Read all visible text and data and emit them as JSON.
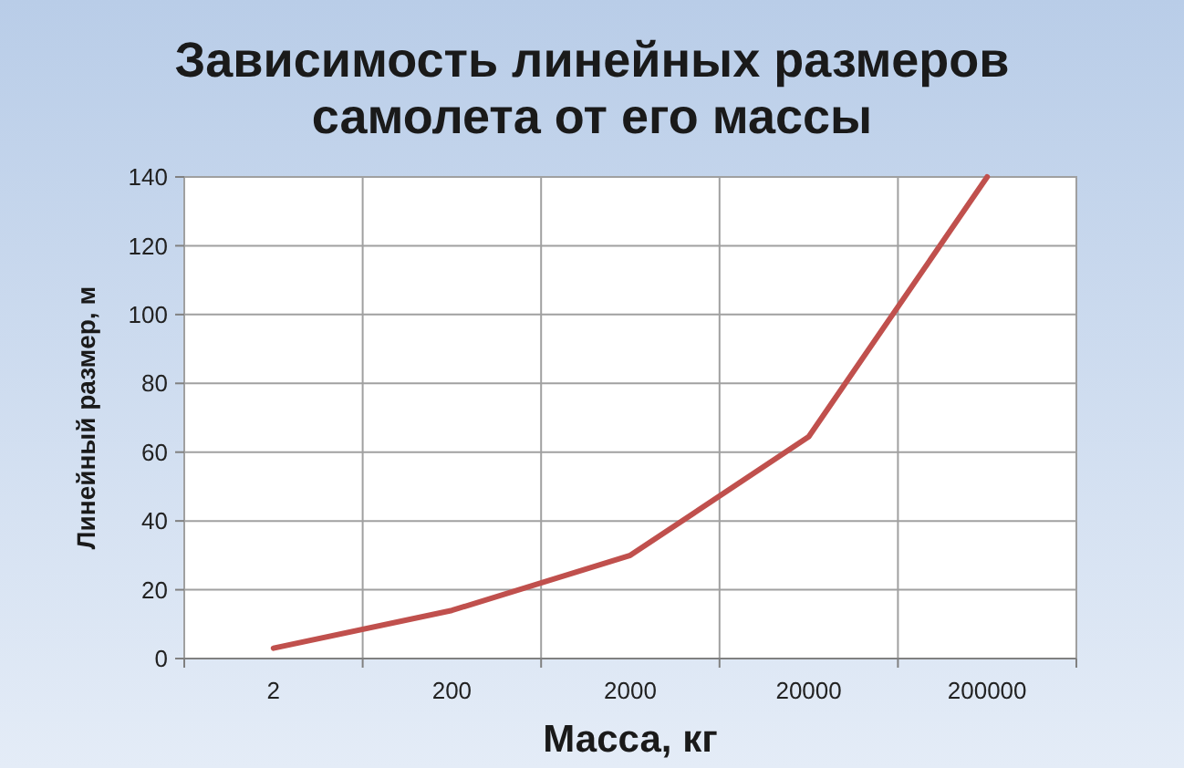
{
  "chart_data": {
    "type": "line",
    "title": "Зависимость линейных размеров\nсамолета от его массы",
    "xlabel": "Масса, кг",
    "ylabel": "Линейный размер, м",
    "categories": [
      "2",
      "200",
      "2000",
      "20000",
      "200000"
    ],
    "series": [
      {
        "color": "#c0504d",
        "values": [
          3,
          14,
          30,
          64.5,
          140
        ]
      }
    ],
    "ylim": [
      0,
      140
    ],
    "yticks": [
      0,
      20,
      40,
      60,
      80,
      100,
      120,
      140
    ],
    "grid": true,
    "marker": "none",
    "line_style": "solid"
  }
}
